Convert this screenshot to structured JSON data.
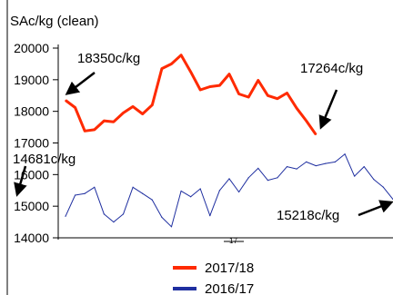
{
  "chart_data": {
    "type": "line",
    "ylabel": "SAc/kg (clean)",
    "ylim": [
      14000,
      20000
    ],
    "yticks": [
      14000,
      15000,
      16000,
      17000,
      18000,
      19000,
      20000
    ],
    "grid": false,
    "legend_position": "bottom",
    "series": [
      {
        "name": "2017/18",
        "color": "#ff2a00",
        "values": [
          18350,
          18120,
          17380,
          17420,
          17700,
          17670,
          17950,
          18150,
          17920,
          18200,
          19350,
          19500,
          19780,
          19250,
          18680,
          18780,
          18820,
          19180,
          18550,
          18450,
          18980,
          18500,
          18400,
          18580,
          18100,
          17700,
          17264
        ]
      },
      {
        "name": "2016/17",
        "color": "#1f2fa0",
        "values": [
          14681,
          15350,
          15400,
          15600,
          14750,
          14500,
          14750,
          15600,
          15400,
          15200,
          14650,
          14350,
          15480,
          15300,
          15550,
          14700,
          15500,
          15870,
          15450,
          15900,
          16200,
          15820,
          15900,
          16250,
          16180,
          16400,
          16280,
          16350,
          16400,
          16650,
          15950,
          16250,
          15850,
          15600,
          15218
        ]
      }
    ],
    "annotations": [
      {
        "text": "18350c/kg",
        "series": 0,
        "point": "first"
      },
      {
        "text": "17264c/kg",
        "series": 0,
        "point": "last"
      },
      {
        "text": "14681c/kg",
        "series": 1,
        "point": "first"
      },
      {
        "text": "15218c/kg",
        "series": 1,
        "point": "last"
      }
    ],
    "xtick_fragment": "17"
  }
}
